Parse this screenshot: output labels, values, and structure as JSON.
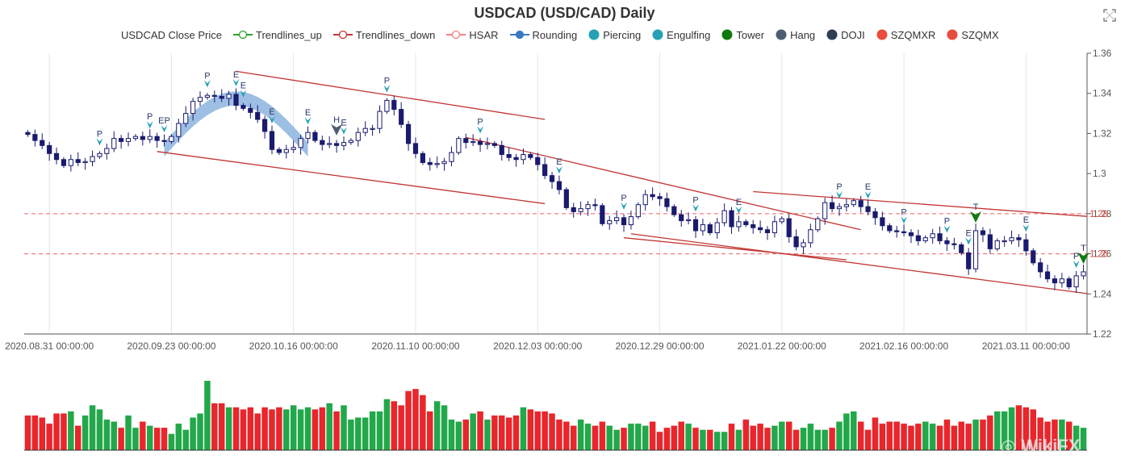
{
  "chart_data": {
    "type": "candlestick",
    "title": "USDCAD (USD/CAD) Daily",
    "legend": [
      {
        "label": "USDCAD Close Price",
        "kind": "none",
        "color": "#333333"
      },
      {
        "label": "Trendlines_up",
        "kind": "line-hollow",
        "color": "#2ca02c"
      },
      {
        "label": "Trendlines_down",
        "kind": "line-hollow",
        "color": "#c23531"
      },
      {
        "label": "HSAR",
        "kind": "line-hollow",
        "color": "#f08080"
      },
      {
        "label": "Rounding",
        "kind": "line-filled",
        "color": "#3a78c4"
      },
      {
        "label": "Piercing",
        "kind": "dot",
        "color": "#26a1b4"
      },
      {
        "label": "Engulfing",
        "kind": "dot",
        "color": "#26a1b4"
      },
      {
        "label": "Tower",
        "kind": "dot",
        "color": "#0f7a0f"
      },
      {
        "label": "Hang",
        "kind": "dot",
        "color": "#4e5d72"
      },
      {
        "label": "DOJI",
        "kind": "dot",
        "color": "#2f3d55"
      },
      {
        "label": "SZQMXR",
        "kind": "dot",
        "color": "#e84c3d"
      },
      {
        "label": "SZQMX",
        "kind": "dot",
        "color": "#e84c3d"
      }
    ],
    "x_tick_labels": [
      "2020.08.31 00:00:00",
      "2020.09.23 00:00:00",
      "2020.10.16 00:00:00",
      "2020.11.10 00:00:00",
      "2020.12.03 00:00:00",
      "2020.12.29 00:00:00",
      "2021.01.22 00:00:00",
      "2021.02.16 00:00:00",
      "2021.03.11 00:00:00"
    ],
    "x_tick_index": [
      3,
      20,
      37,
      54,
      71,
      88,
      105,
      122,
      139
    ],
    "y_ticks": [
      "1.22",
      "1.24",
      "1.26",
      "1.28",
      "1.3",
      "1.32",
      "1.34",
      "1.36"
    ],
    "ylim": [
      1.22,
      1.36
    ],
    "num_bars": 148,
    "close": [
      1.3195,
      1.3165,
      1.314,
      1.31,
      1.307,
      1.304,
      1.307,
      1.3055,
      1.306,
      1.3085,
      1.31,
      1.3125,
      1.3175,
      1.316,
      1.3175,
      1.3185,
      1.317,
      1.3185,
      1.3165,
      1.316,
      1.3185,
      1.325,
      1.33,
      1.336,
      1.338,
      1.339,
      1.3385,
      1.3375,
      1.3395,
      1.334,
      1.3325,
      1.3305,
      1.327,
      1.321,
      1.312,
      1.3105,
      1.312,
      1.313,
      1.3175,
      1.3205,
      1.3165,
      1.3145,
      1.315,
      1.314,
      1.3155,
      1.3165,
      1.3205,
      1.3225,
      1.3225,
      1.331,
      1.3365,
      1.332,
      1.3245,
      1.315,
      1.31,
      1.3055,
      1.3045,
      1.305,
      1.306,
      1.3105,
      1.3175,
      1.3155,
      1.316,
      1.3145,
      1.315,
      1.314,
      1.3095,
      1.308,
      1.307,
      1.3095,
      1.308,
      1.3045,
      1.299,
      1.296,
      1.292,
      1.283,
      1.281,
      1.2825,
      1.2845,
      1.284,
      1.275,
      1.2765,
      1.278,
      1.2745,
      1.2785,
      1.2845,
      1.2895,
      1.2885,
      1.2875,
      1.2835,
      1.2795,
      1.2765,
      1.277,
      1.2715,
      1.2745,
      1.2705,
      1.2755,
      1.2815,
      1.2735,
      1.276,
      1.2745,
      1.273,
      1.272,
      1.2705,
      1.276,
      1.2775,
      1.2685,
      1.2635,
      1.2655,
      1.272,
      1.2775,
      1.2855,
      1.2825,
      1.2835,
      1.2845,
      1.2865,
      1.2835,
      1.281,
      1.278,
      1.274,
      1.2715,
      1.271,
      1.2705,
      1.269,
      1.2665,
      1.268,
      1.27,
      1.2665,
      1.265,
      1.2645,
      1.2605,
      1.2525,
      1.2715,
      1.2695,
      1.2625,
      1.2665,
      1.2665,
      1.268,
      1.267,
      1.2615,
      1.2555,
      1.251,
      1.2475,
      1.2455,
      1.2475,
      1.2435,
      1.249,
      1.251
    ],
    "volume": [
      17,
      17,
      16,
      13,
      18,
      18,
      19,
      12,
      17,
      22,
      20,
      15,
      14,
      11,
      17,
      11,
      14,
      12,
      11,
      11,
      8,
      13,
      10,
      16,
      18,
      34,
      23,
      23,
      21,
      21,
      20,
      21,
      18,
      21,
      20,
      21,
      20,
      22,
      20,
      21,
      20,
      21,
      23,
      19,
      22,
      15,
      16,
      16,
      19,
      19,
      25,
      24,
      22,
      29,
      30,
      27,
      19,
      24,
      22,
      15,
      14,
      15,
      18,
      19,
      15,
      17,
      17,
      16,
      17,
      21,
      20,
      19,
      19,
      18,
      15,
      14,
      12,
      15,
      13,
      12,
      14,
      12,
      10,
      11,
      13,
      13,
      12,
      14,
      9,
      11,
      12,
      14,
      13,
      11,
      10,
      10,
      9,
      9,
      13,
      10,
      15,
      12,
      13,
      11,
      12,
      14,
      14,
      10,
      11,
      13,
      10,
      10,
      11,
      14,
      18,
      19,
      14,
      10,
      16,
      13,
      14,
      14,
      13,
      12,
      13,
      14,
      13,
      12,
      15,
      12,
      14,
      13,
      15,
      15,
      17,
      19,
      19,
      21,
      22,
      21,
      20,
      16,
      14,
      15,
      15,
      14,
      12,
      11
    ]
  },
  "markers": [
    {
      "i": 10,
      "label": "P",
      "kind": "piercing"
    },
    {
      "i": 17,
      "label": "P",
      "kind": "piercing"
    },
    {
      "i": 19,
      "label": "EP",
      "kind": "piercing"
    },
    {
      "i": 25,
      "label": "P",
      "kind": "piercing"
    },
    {
      "i": 29,
      "label": "E",
      "kind": "engulfing"
    },
    {
      "i": 30,
      "label": "E",
      "kind": "engulfing"
    },
    {
      "i": 34,
      "label": "E",
      "kind": "engulfing"
    },
    {
      "i": 39,
      "label": "E",
      "kind": "engulfing"
    },
    {
      "i": 43,
      "label": "H",
      "kind": "hang"
    },
    {
      "i": 44,
      "label": "E",
      "kind": "engulfing"
    },
    {
      "i": 50,
      "label": "P",
      "kind": "piercing"
    },
    {
      "i": 63,
      "label": "P",
      "kind": "piercing"
    },
    {
      "i": 74,
      "label": "E",
      "kind": "engulfing"
    },
    {
      "i": 83,
      "label": "P",
      "kind": "piercing"
    },
    {
      "i": 93,
      "label": "P",
      "kind": "piercing"
    },
    {
      "i": 99,
      "label": "E",
      "kind": "engulfing"
    },
    {
      "i": 113,
      "label": "P",
      "kind": "piercing"
    },
    {
      "i": 117,
      "label": "E",
      "kind": "engulfing"
    },
    {
      "i": 122,
      "label": "P",
      "kind": "piercing"
    },
    {
      "i": 128,
      "label": "P",
      "kind": "piercing"
    },
    {
      "i": 131,
      "label": "E",
      "kind": "engulfing"
    },
    {
      "i": 132,
      "label": "T",
      "kind": "tower"
    },
    {
      "i": 139,
      "label": "E",
      "kind": "engulfing"
    },
    {
      "i": 146,
      "label": "P",
      "kind": "piercing"
    },
    {
      "i": 147,
      "label": "T",
      "kind": "tower"
    }
  ],
  "trendlines_down": [
    {
      "i0": 29,
      "y0": 1.351,
      "i1": 72,
      "y1": 1.327
    },
    {
      "i0": 18,
      "y0": 1.311,
      "i1": 72,
      "y1": 1.285
    },
    {
      "i0": 61,
      "y0": 1.318,
      "i1": 116,
      "y1": 1.272
    },
    {
      "i0": 83,
      "y0": 1.268,
      "i1": 114,
      "y1": 1.257
    },
    {
      "i0": 101,
      "y0": 1.291,
      "i1": 150,
      "y1": 1.278
    },
    {
      "i0": 84,
      "y0": 1.27,
      "i1": 150,
      "y1": 1.239
    }
  ],
  "hsar_levels": [
    1.28,
    1.26
  ],
  "hsar_right_labels": [
    "1.28",
    "1.26"
  ]
}
